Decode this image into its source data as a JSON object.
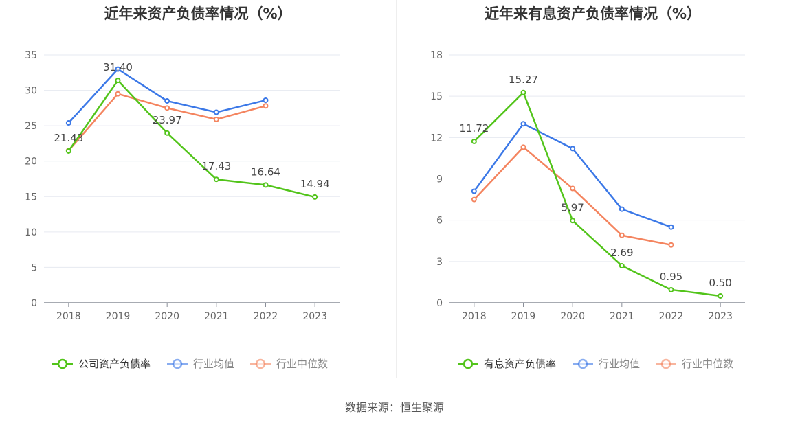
{
  "source": "数据来源：恒生聚源",
  "colors": {
    "company": "#52c41a",
    "average": "#3b78e7",
    "median": "#f4845f"
  },
  "chart_data": [
    {
      "type": "line",
      "title": "近年来资产负债率情况（%）",
      "x": [
        "2018",
        "2019",
        "2020",
        "2021",
        "2022",
        "2023"
      ],
      "ylim": [
        0,
        35
      ],
      "yticks": [
        0,
        5,
        10,
        15,
        20,
        25,
        30,
        35
      ],
      "grid": true,
      "legend_position": "bottom",
      "series": [
        {
          "name": "公司资产负债率",
          "color": "#52c41a",
          "labeled": true,
          "values": [
            21.43,
            31.4,
            23.97,
            17.43,
            16.64,
            14.94
          ],
          "labels": [
            "21.43",
            "31.40",
            "23.97",
            "17.43",
            "16.64",
            "14.94"
          ]
        },
        {
          "name": "行业均值",
          "color": "#3b78e7",
          "labeled": false,
          "values": [
            25.4,
            33.0,
            28.5,
            26.9,
            28.6,
            null
          ]
        },
        {
          "name": "行业中位数",
          "color": "#f4845f",
          "labeled": false,
          "values": [
            21.5,
            29.5,
            27.5,
            25.9,
            27.8,
            null
          ]
        }
      ]
    },
    {
      "type": "line",
      "title": "近年来有息资产负债率情况（%）",
      "x": [
        "2018",
        "2019",
        "2020",
        "2021",
        "2022",
        "2023"
      ],
      "ylim": [
        0,
        18
      ],
      "yticks": [
        0,
        3,
        6,
        9,
        12,
        15,
        18
      ],
      "grid": true,
      "legend_position": "bottom",
      "series": [
        {
          "name": "有息资产负债率",
          "color": "#52c41a",
          "labeled": true,
          "values": [
            11.72,
            15.27,
            5.97,
            2.69,
            0.95,
            0.5
          ],
          "labels": [
            "11.72",
            "15.27",
            "5.97",
            "2.69",
            "0.95",
            "0.50"
          ]
        },
        {
          "name": "行业均值",
          "color": "#3b78e7",
          "labeled": false,
          "values": [
            8.1,
            13.0,
            11.2,
            6.8,
            5.5,
            null
          ]
        },
        {
          "name": "行业中位数",
          "color": "#f4845f",
          "labeled": false,
          "values": [
            7.5,
            11.3,
            8.3,
            4.9,
            4.2,
            null
          ]
        }
      ]
    }
  ]
}
